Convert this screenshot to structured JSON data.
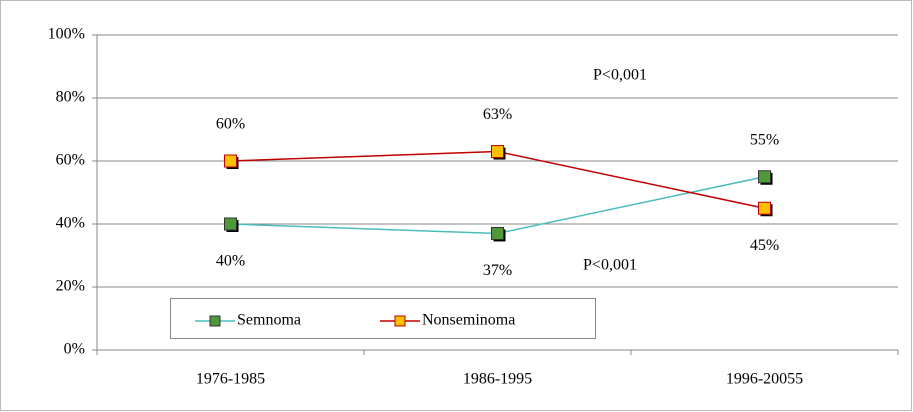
{
  "chart_data": {
    "type": "line",
    "categories": [
      "1976-1985",
      "1986-1995",
      "1996-20055"
    ],
    "series": [
      {
        "name": "Semnoma",
        "color": "#4bbdbd",
        "marker_color": "#4e9a3a",
        "values": [
          40,
          37,
          55
        ],
        "value_labels": [
          "40%",
          "37%",
          "55%"
        ]
      },
      {
        "name": "Nonseminoma",
        "color": "#c00000",
        "marker_color": "#ffc000",
        "values": [
          60,
          63,
          45
        ],
        "value_labels": [
          "60%",
          "63%",
          "45%"
        ]
      }
    ],
    "ylim": [
      0,
      100
    ],
    "yticks": [
      {
        "value": 0,
        "label": "0%"
      },
      {
        "value": 20,
        "label": "20%"
      },
      {
        "value": 40,
        "label": "40%"
      },
      {
        "value": 60,
        "label": "60%"
      },
      {
        "value": 80,
        "label": "80%"
      },
      {
        "value": 100,
        "label": "100%"
      }
    ],
    "grid": true,
    "annotations": [
      "P<0,001",
      "P<0,001"
    ]
  }
}
